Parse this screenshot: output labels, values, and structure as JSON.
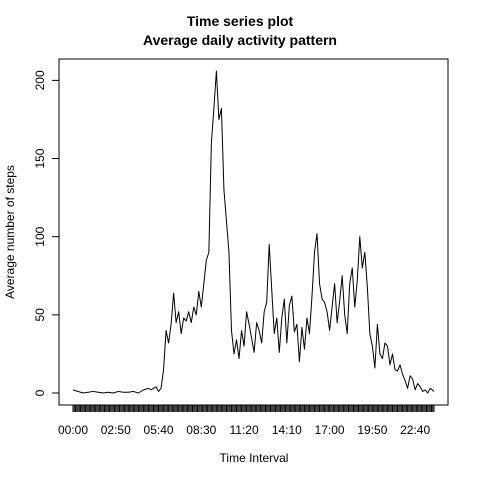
{
  "chart_data": {
    "type": "line",
    "title": "Time series plot",
    "subtitle": "Average daily activity pattern",
    "xlabel": "Time Interval",
    "ylabel": "Average number of steps",
    "xlim": [
      0,
      287
    ],
    "ylim": [
      0,
      206
    ],
    "y_ticks": [
      0,
      50,
      100,
      150,
      200
    ],
    "x_tick_labels": [
      "00:00",
      "02:50",
      "05:40",
      "08:30",
      "11:20",
      "14:10",
      "17:00",
      "19:50",
      "22:40"
    ],
    "x_tick_positions": [
      0,
      34,
      68,
      102,
      136,
      170,
      204,
      238,
      272
    ],
    "grid": false,
    "legend": "none",
    "series": [
      {
        "line_color": "#000000",
        "x": [
          0,
          8,
          12,
          16,
          20,
          24,
          28,
          32,
          36,
          40,
          44,
          48,
          52,
          56,
          60,
          62,
          64,
          66,
          68,
          70,
          72,
          74,
          76,
          78,
          80,
          82,
          84,
          86,
          88,
          90,
          92,
          94,
          96,
          98,
          100,
          102,
          104,
          106,
          108,
          110,
          112,
          114,
          116,
          118,
          120,
          122,
          124,
          126,
          128,
          130,
          132,
          134,
          136,
          138,
          140,
          142,
          144,
          146,
          148,
          150,
          152,
          154,
          156,
          158,
          160,
          162,
          164,
          166,
          168,
          170,
          172,
          174,
          176,
          178,
          180,
          182,
          184,
          186,
          188,
          190,
          192,
          194,
          196,
          198,
          200,
          202,
          204,
          206,
          208,
          210,
          212,
          214,
          216,
          218,
          220,
          222,
          224,
          226,
          228,
          230,
          232,
          234,
          236,
          238,
          240,
          242,
          244,
          246,
          248,
          250,
          252,
          254,
          256,
          258,
          260,
          262,
          264,
          266,
          268,
          270,
          272,
          274,
          276,
          278,
          280,
          282,
          284,
          287
        ],
        "y": [
          2,
          0,
          0.5,
          1,
          0.5,
          0,
          0.5,
          0,
          1,
          0.5,
          0.5,
          1,
          0,
          2,
          3,
          2,
          3,
          4,
          1,
          3,
          15,
          40,
          32,
          44,
          64,
          45,
          52,
          38,
          48,
          46,
          52,
          45,
          55,
          50,
          65,
          55,
          70,
          85,
          90,
          160,
          182,
          206,
          175,
          182,
          130,
          110,
          90,
          40,
          25,
          34,
          22,
          40,
          30,
          52,
          44,
          35,
          26,
          45,
          40,
          32,
          52,
          58,
          95,
          66,
          38,
          48,
          26,
          48,
          60,
          32,
          56,
          62,
          39,
          44,
          20,
          42,
          28,
          48,
          38,
          62,
          90,
          102,
          70,
          60,
          58,
          52,
          40,
          55,
          70,
          45,
          59,
          75,
          50,
          38,
          70,
          80,
          55,
          72,
          100,
          80,
          90,
          68,
          38,
          30,
          16,
          44,
          25,
          22,
          32,
          30,
          18,
          25,
          15,
          14,
          18,
          12,
          8,
          3,
          11,
          9,
          2,
          6,
          4,
          1,
          2,
          0,
          3,
          1
        ]
      }
    ]
  }
}
